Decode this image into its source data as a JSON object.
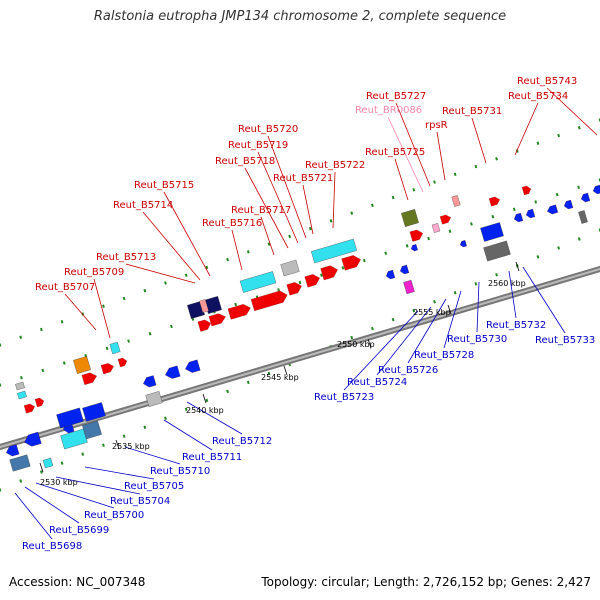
{
  "title": "Ralstonia eutropha JMP134 chromosome 2, complete sequence",
  "footer": {
    "accession": "Accession: NC_007348",
    "info": "Topology: circular; Length: 2,726,152 bp; Genes: 2,427"
  },
  "colors": {
    "plus_label": "#cc0000",
    "minus_label": "#0000cc",
    "pink_label": "#ff88aa",
    "red_feature": "#ee0000",
    "blue_feature": "#0022ee",
    "cyan_feature": "#33e0ee",
    "navy_feature": "#101060",
    "steelblue_feature": "#4477aa",
    "gray_feature": "#bbbbbb",
    "darkgray_feature": "#666666",
    "orange_feature": "#ee8800",
    "olive_feature": "#667722",
    "magenta_feature": "#ee22cc",
    "backbone": "#888888"
  },
  "bp_ticks": [
    "2530 kbp",
    "2535 kbp",
    "2540 kbp",
    "2545 kbp",
    "2550 kbp",
    "2555 kbp",
    "2560 kbp"
  ],
  "plus_labels": [
    "Reut_B5707",
    "Reut_B5709",
    "Reut_B5713",
    "Reut_B5714",
    "Reut_B5715",
    "Reut_B5716",
    "Reut_B5717",
    "Reut_B5718",
    "Reut_B5719",
    "Reut_B5720",
    "Reut_B5721",
    "Reut_B5722",
    "Reut_B5725",
    "Reut_BR0086",
    "Reut_B5727",
    "rpsR",
    "Reut_B5731",
    "Reut_B5734",
    "Reut_B5743"
  ],
  "minus_labels": [
    "Reut_B5698",
    "Reut_B5699",
    "Reut_B5700",
    "Reut_B5704",
    "Reut_B5705",
    "Reut_B5710",
    "Reut_B5711",
    "Reut_B5712",
    "Reut_B5723",
    "Reut_B5724",
    "Reut_B5726",
    "Reut_B5728",
    "Reut_B5730",
    "Reut_B5732",
    "Reut_B5733"
  ]
}
